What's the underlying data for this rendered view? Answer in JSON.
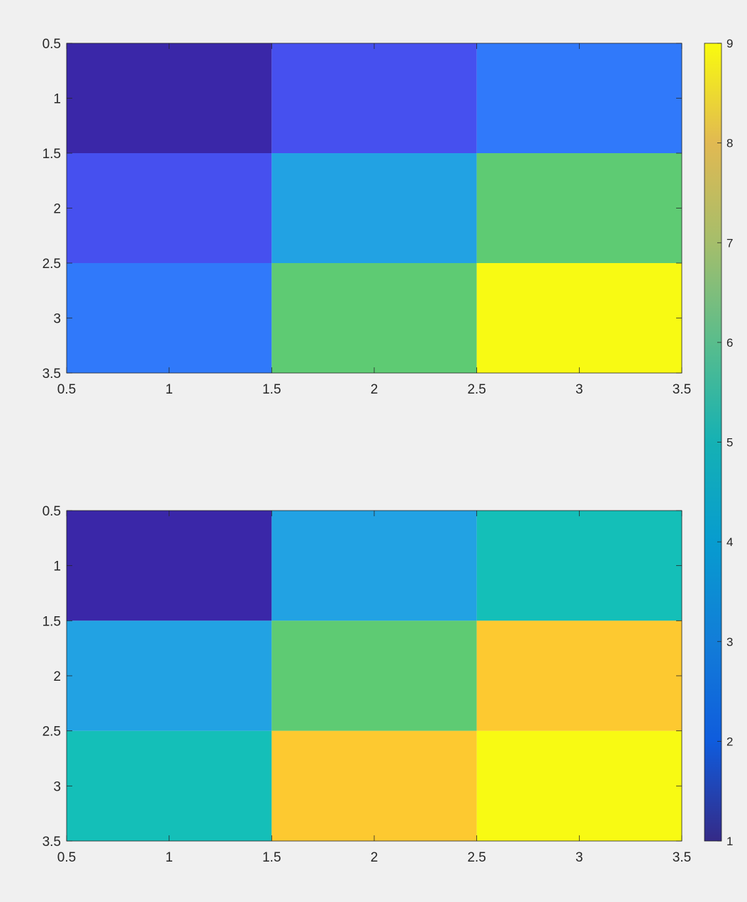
{
  "chart_data": [
    {
      "type": "heatmap",
      "x": [
        1,
        2,
        3
      ],
      "y": [
        1,
        2,
        3
      ],
      "xlim": [
        0.5,
        3.5
      ],
      "ylim": [
        0.5,
        3.5
      ],
      "y_direction": "reversed",
      "xticks": [
        "0.5",
        "1",
        "1.5",
        "2",
        "2.5",
        "3",
        "3.5"
      ],
      "yticks": [
        "0.5",
        "1",
        "1.5",
        "2",
        "2.5",
        "3",
        "3.5"
      ],
      "values": [
        [
          1,
          2,
          3
        ],
        [
          2,
          4,
          6
        ],
        [
          3,
          6,
          9
        ]
      ],
      "grid": false
    },
    {
      "type": "heatmap",
      "x": [
        1,
        2,
        3
      ],
      "y": [
        1,
        2,
        3
      ],
      "xlim": [
        0.5,
        3.5
      ],
      "ylim": [
        0.5,
        3.5
      ],
      "y_direction": "reversed",
      "xticks": [
        "0.5",
        "1",
        "1.5",
        "2",
        "2.5",
        "3",
        "3.5"
      ],
      "yticks": [
        "0.5",
        "1",
        "1.5",
        "2",
        "2.5",
        "3",
        "3.5"
      ],
      "values": [
        [
          1,
          4,
          5
        ],
        [
          4,
          6,
          8
        ],
        [
          5,
          8,
          9
        ]
      ],
      "grid": false
    }
  ],
  "colorbar": {
    "colormap": "parula",
    "clim": [
      1,
      9
    ],
    "ticks": [
      "1",
      "2",
      "3",
      "4",
      "5",
      "6",
      "7",
      "8",
      "9"
    ],
    "placement": "right"
  }
}
